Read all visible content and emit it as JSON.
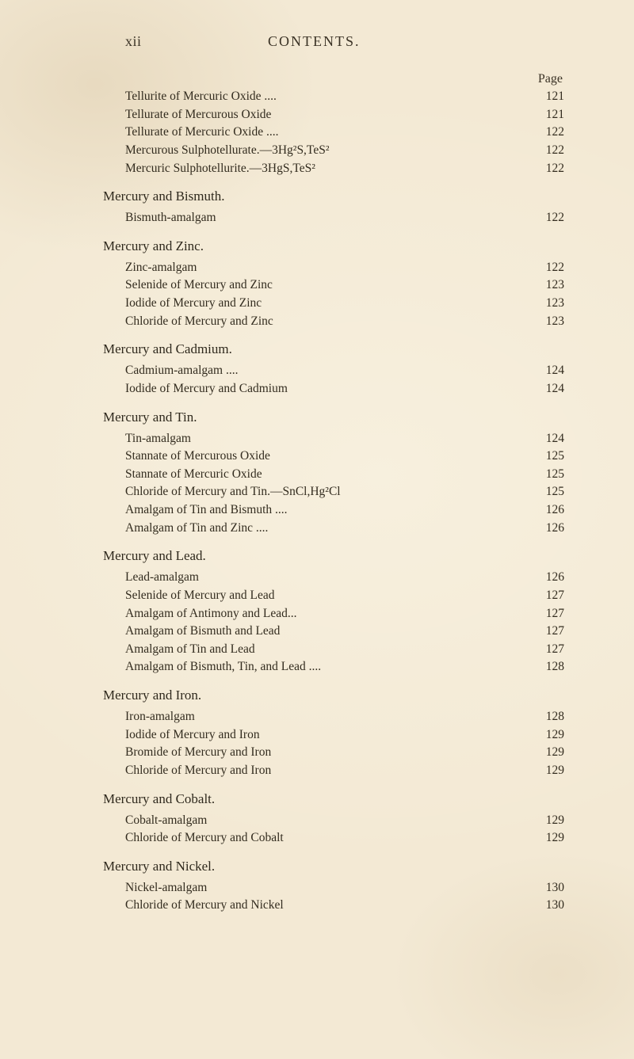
{
  "header": {
    "roman": "xii",
    "title": "CONTENTS.",
    "pageLabel": "Page"
  },
  "blocks": [
    {
      "entries": [
        {
          "label": "Tellurite of Mercuric Oxide     ....",
          "page": "121"
        },
        {
          "label": "Tellurate of Mercurous Oxide",
          "page": "121"
        },
        {
          "label": "Tellurate of Mercuric Oxide     ....",
          "page": "122"
        },
        {
          "label": "Mercurous Sulphotellurate.—3Hg²S,TeS²",
          "page": "122"
        },
        {
          "label": "Mercuric Sulphotellurite.—3HgS,TeS²",
          "page": "122"
        }
      ]
    },
    {
      "section": "Mercury and Bismuth.",
      "entries": [
        {
          "label": "Bismuth-amalgam",
          "page": "122"
        }
      ]
    },
    {
      "section": "Mercury and Zinc.",
      "entries": [
        {
          "label": "Zinc-amalgam",
          "page": "122"
        },
        {
          "label": "Selenide of Mercury and Zinc",
          "page": "123"
        },
        {
          "label": "Iodide of Mercury and Zinc",
          "page": "123"
        },
        {
          "label": "Chloride of Mercury and Zinc",
          "page": "123"
        }
      ]
    },
    {
      "section": "Mercury and Cadmium.",
      "entries": [
        {
          "label": "Cadmium-amalgam   ....",
          "page": "124"
        },
        {
          "label": "Iodide of Mercury and Cadmium",
          "page": "124"
        }
      ]
    },
    {
      "section": "Mercury and Tin.",
      "entries": [
        {
          "label": "Tin-amalgam",
          "page": "124"
        },
        {
          "label": "Stannate of Mercurous Oxide",
          "page": "125"
        },
        {
          "label": "Stannate of Mercuric Oxide",
          "page": "125"
        },
        {
          "label": "Chloride of Mercury and Tin.—SnCl,Hg²Cl",
          "page": "125"
        },
        {
          "label": "Amalgam of Tin and Bismuth   ....",
          "page": "126"
        },
        {
          "label": "Amalgam of Tin and Zinc ....",
          "page": "126"
        }
      ]
    },
    {
      "section": "Mercury and Lead.",
      "entries": [
        {
          "label": "Lead-amalgam",
          "page": "126"
        },
        {
          "label": "Selenide of Mercury and Lead",
          "page": "127"
        },
        {
          "label": "Amalgam of Antimony and Lead...",
          "page": "127"
        },
        {
          "label": "Amalgam of Bismuth and Lead",
          "page": "127"
        },
        {
          "label": "Amalgam of Tin and Lead",
          "page": "127"
        },
        {
          "label": "Amalgam of Bismuth, Tin, and Lead   ....",
          "page": "128"
        }
      ]
    },
    {
      "section": "Mercury and Iron.",
      "entries": [
        {
          "label": "Iron-amalgam",
          "page": "128"
        },
        {
          "label": "Iodide of Mercury and Iron",
          "page": "129"
        },
        {
          "label": "Bromide of Mercury and Iron",
          "page": "129"
        },
        {
          "label": "Chloride of Mercury and Iron",
          "page": "129"
        }
      ]
    },
    {
      "section": "Mercury and Cobalt.",
      "entries": [
        {
          "label": "Cobalt-amalgam",
          "page": "129"
        },
        {
          "label": "Chloride of Mercury and Cobalt",
          "page": "129"
        }
      ]
    },
    {
      "section": "Mercury and Nickel.",
      "entries": [
        {
          "label": "Nickel-amalgam",
          "page": "130"
        },
        {
          "label": "Chloride of Mercury and Nickel",
          "page": "130"
        }
      ]
    }
  ]
}
